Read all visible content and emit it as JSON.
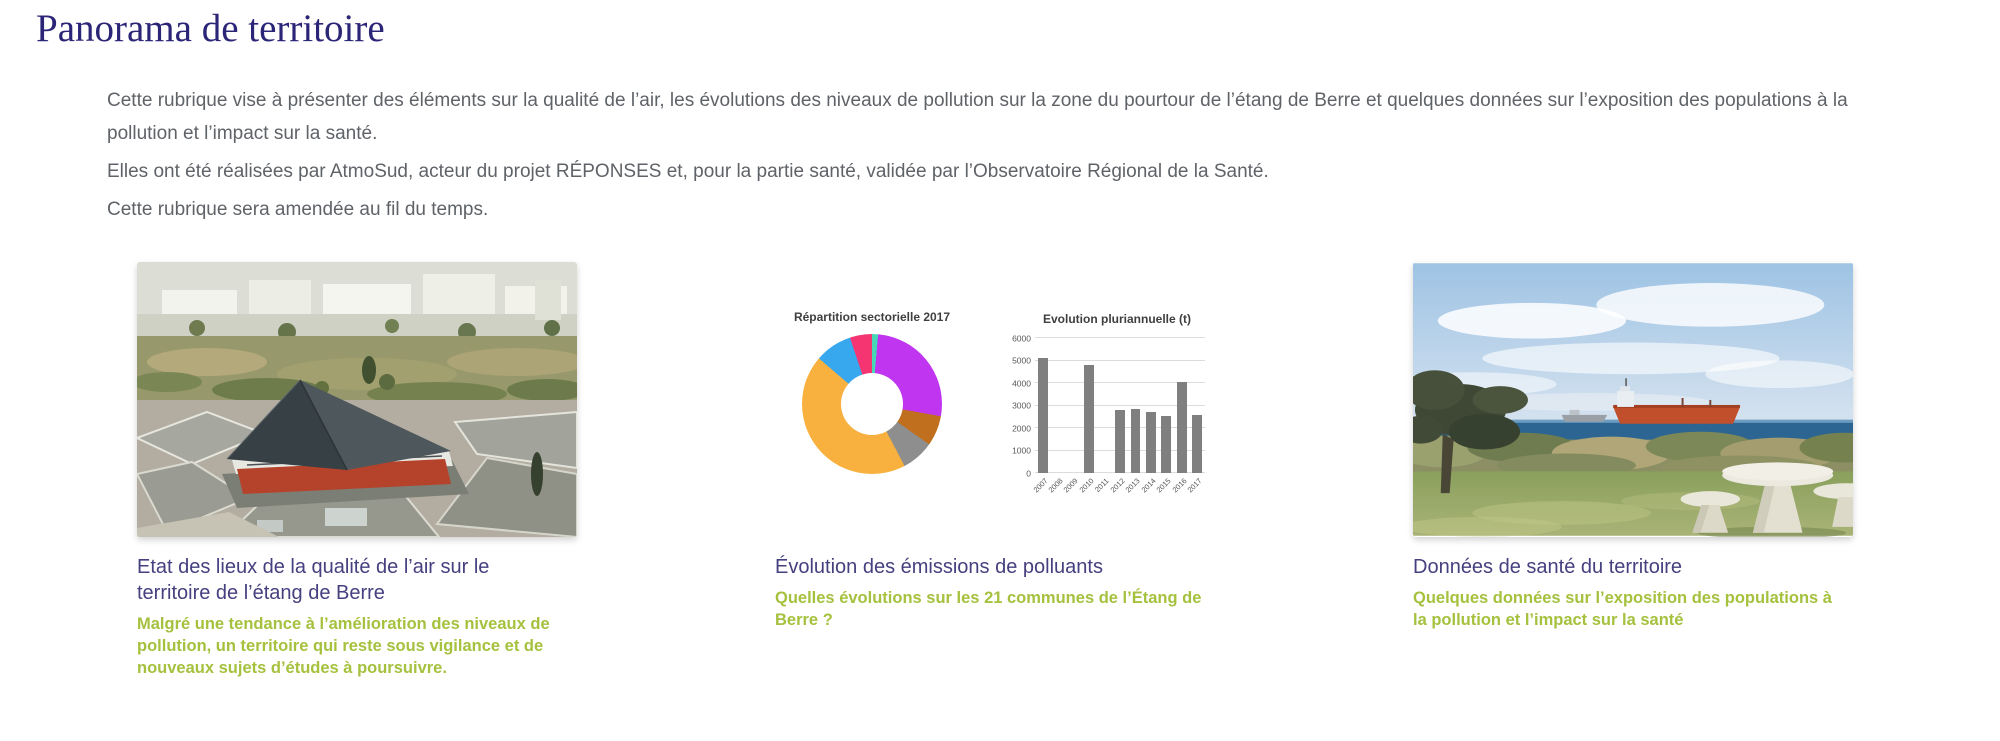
{
  "page": {
    "title": "Panorama de territoire",
    "intro": [
      "Cette rubrique vise à présenter des éléments sur la qualité de l’air, les évolutions des niveaux de pollution sur la zone du pourtour de l’étang de Berre et quelques données sur l’exposition des populations à la pollution et l’impact sur la santé.",
      "Elles ont été réalisées par AtmoSud, acteur du projet RÉPONSES et, pour la partie santé, validée par l’Observatoire Régional de la Santé.",
      "Cette rubrique sera amendée au fil du temps."
    ]
  },
  "colors": {
    "title": "#2b2577",
    "card_title": "#45407f",
    "teaser_green": "#a5c13e",
    "body_text": "#5f6368",
    "bar_gray": "#7f7f7f"
  },
  "cards": [
    {
      "title": "Etat des lieux de la qualité de l’air sur le territoire de l’étang de Berre",
      "teaser": "Malgré une tendance à l’amélioration des niveaux de pollution, un territoire qui reste sous vigilance et de nouveaux sujets d’études à poursuivre.",
      "image": "aerial-photo-etang-de-berre"
    },
    {
      "title": "Évolution des émissions de polluants",
      "teaser": "Quelles évolutions sur les 21 communes de l’Étang de Berre ?",
      "image": "emissions-charts-figure"
    },
    {
      "title": "Données de santé du territoire",
      "teaser": "Quelques données sur l’exposition des populations à la pollution et l’impact sur la santé",
      "image": "coastal-photo-tanker"
    }
  ],
  "chart_data": [
    {
      "type": "pie",
      "donut": true,
      "title": "Répartition sectorielle 2017",
      "legend": "none",
      "slices": [
        {
          "value": 1.4,
          "color": "#45d9b8"
        },
        {
          "value": 26.4,
          "color": "#bf35f0"
        },
        {
          "value": 7.0,
          "color": "#c06f1e"
        },
        {
          "value": 7.5,
          "color": "#8e8e8e"
        },
        {
          "value": 44.0,
          "color": "#f8b13f"
        },
        {
          "value": 8.6,
          "color": "#38a8ee"
        },
        {
          "value": 5.1,
          "color": "#f53572"
        }
      ]
    },
    {
      "type": "bar",
      "title": "Evolution pluriannuelle (t)",
      "categories": [
        "2007",
        "2008",
        "2009",
        "2010",
        "2011",
        "2012",
        "2013",
        "2014",
        "2015",
        "2016",
        "2017"
      ],
      "values": [
        5100,
        0,
        0,
        4800,
        0,
        2800,
        2850,
        2700,
        2550,
        4050,
        2600
      ],
      "xlabel": "",
      "ylabel": "",
      "ylim": [
        0,
        6000
      ],
      "ytick_step": 1000,
      "grid": true
    }
  ]
}
